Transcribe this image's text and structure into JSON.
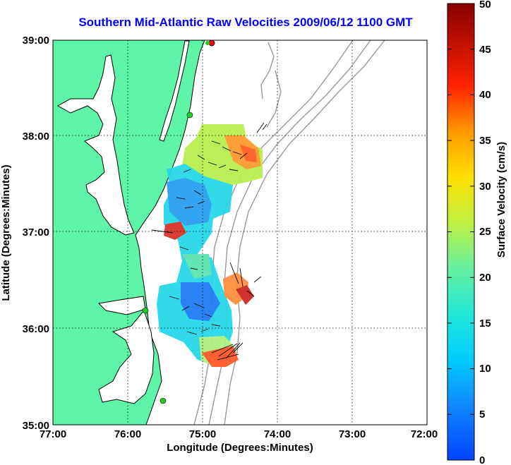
{
  "title": "Southern Mid-Atlantic Raw Velocities 2009/06/12 1100 GMT",
  "map": {
    "xlabel": "Longitude (Degrees:Minutes)",
    "ylabel": "Latitude (Degrees:Minutes)",
    "x_ticks": [
      "77:00",
      "76:00",
      "75:00",
      "74:00",
      "73:00",
      "72:00"
    ],
    "y_ticks": [
      "39:00",
      "38:00",
      "37:00",
      "36:00",
      "35:00"
    ],
    "land_color": "#5ff5a8",
    "bathymetry_color": "#999999",
    "station_color": "#22cc22",
    "station_alert_color": "#ff0000"
  },
  "colorbar": {
    "label": "Surface Velocity (cm/s)",
    "ticks": [
      "0",
      "5",
      "10",
      "15",
      "20",
      "25",
      "30",
      "35",
      "40",
      "45",
      "50"
    ],
    "min": 0,
    "max": 50
  }
}
